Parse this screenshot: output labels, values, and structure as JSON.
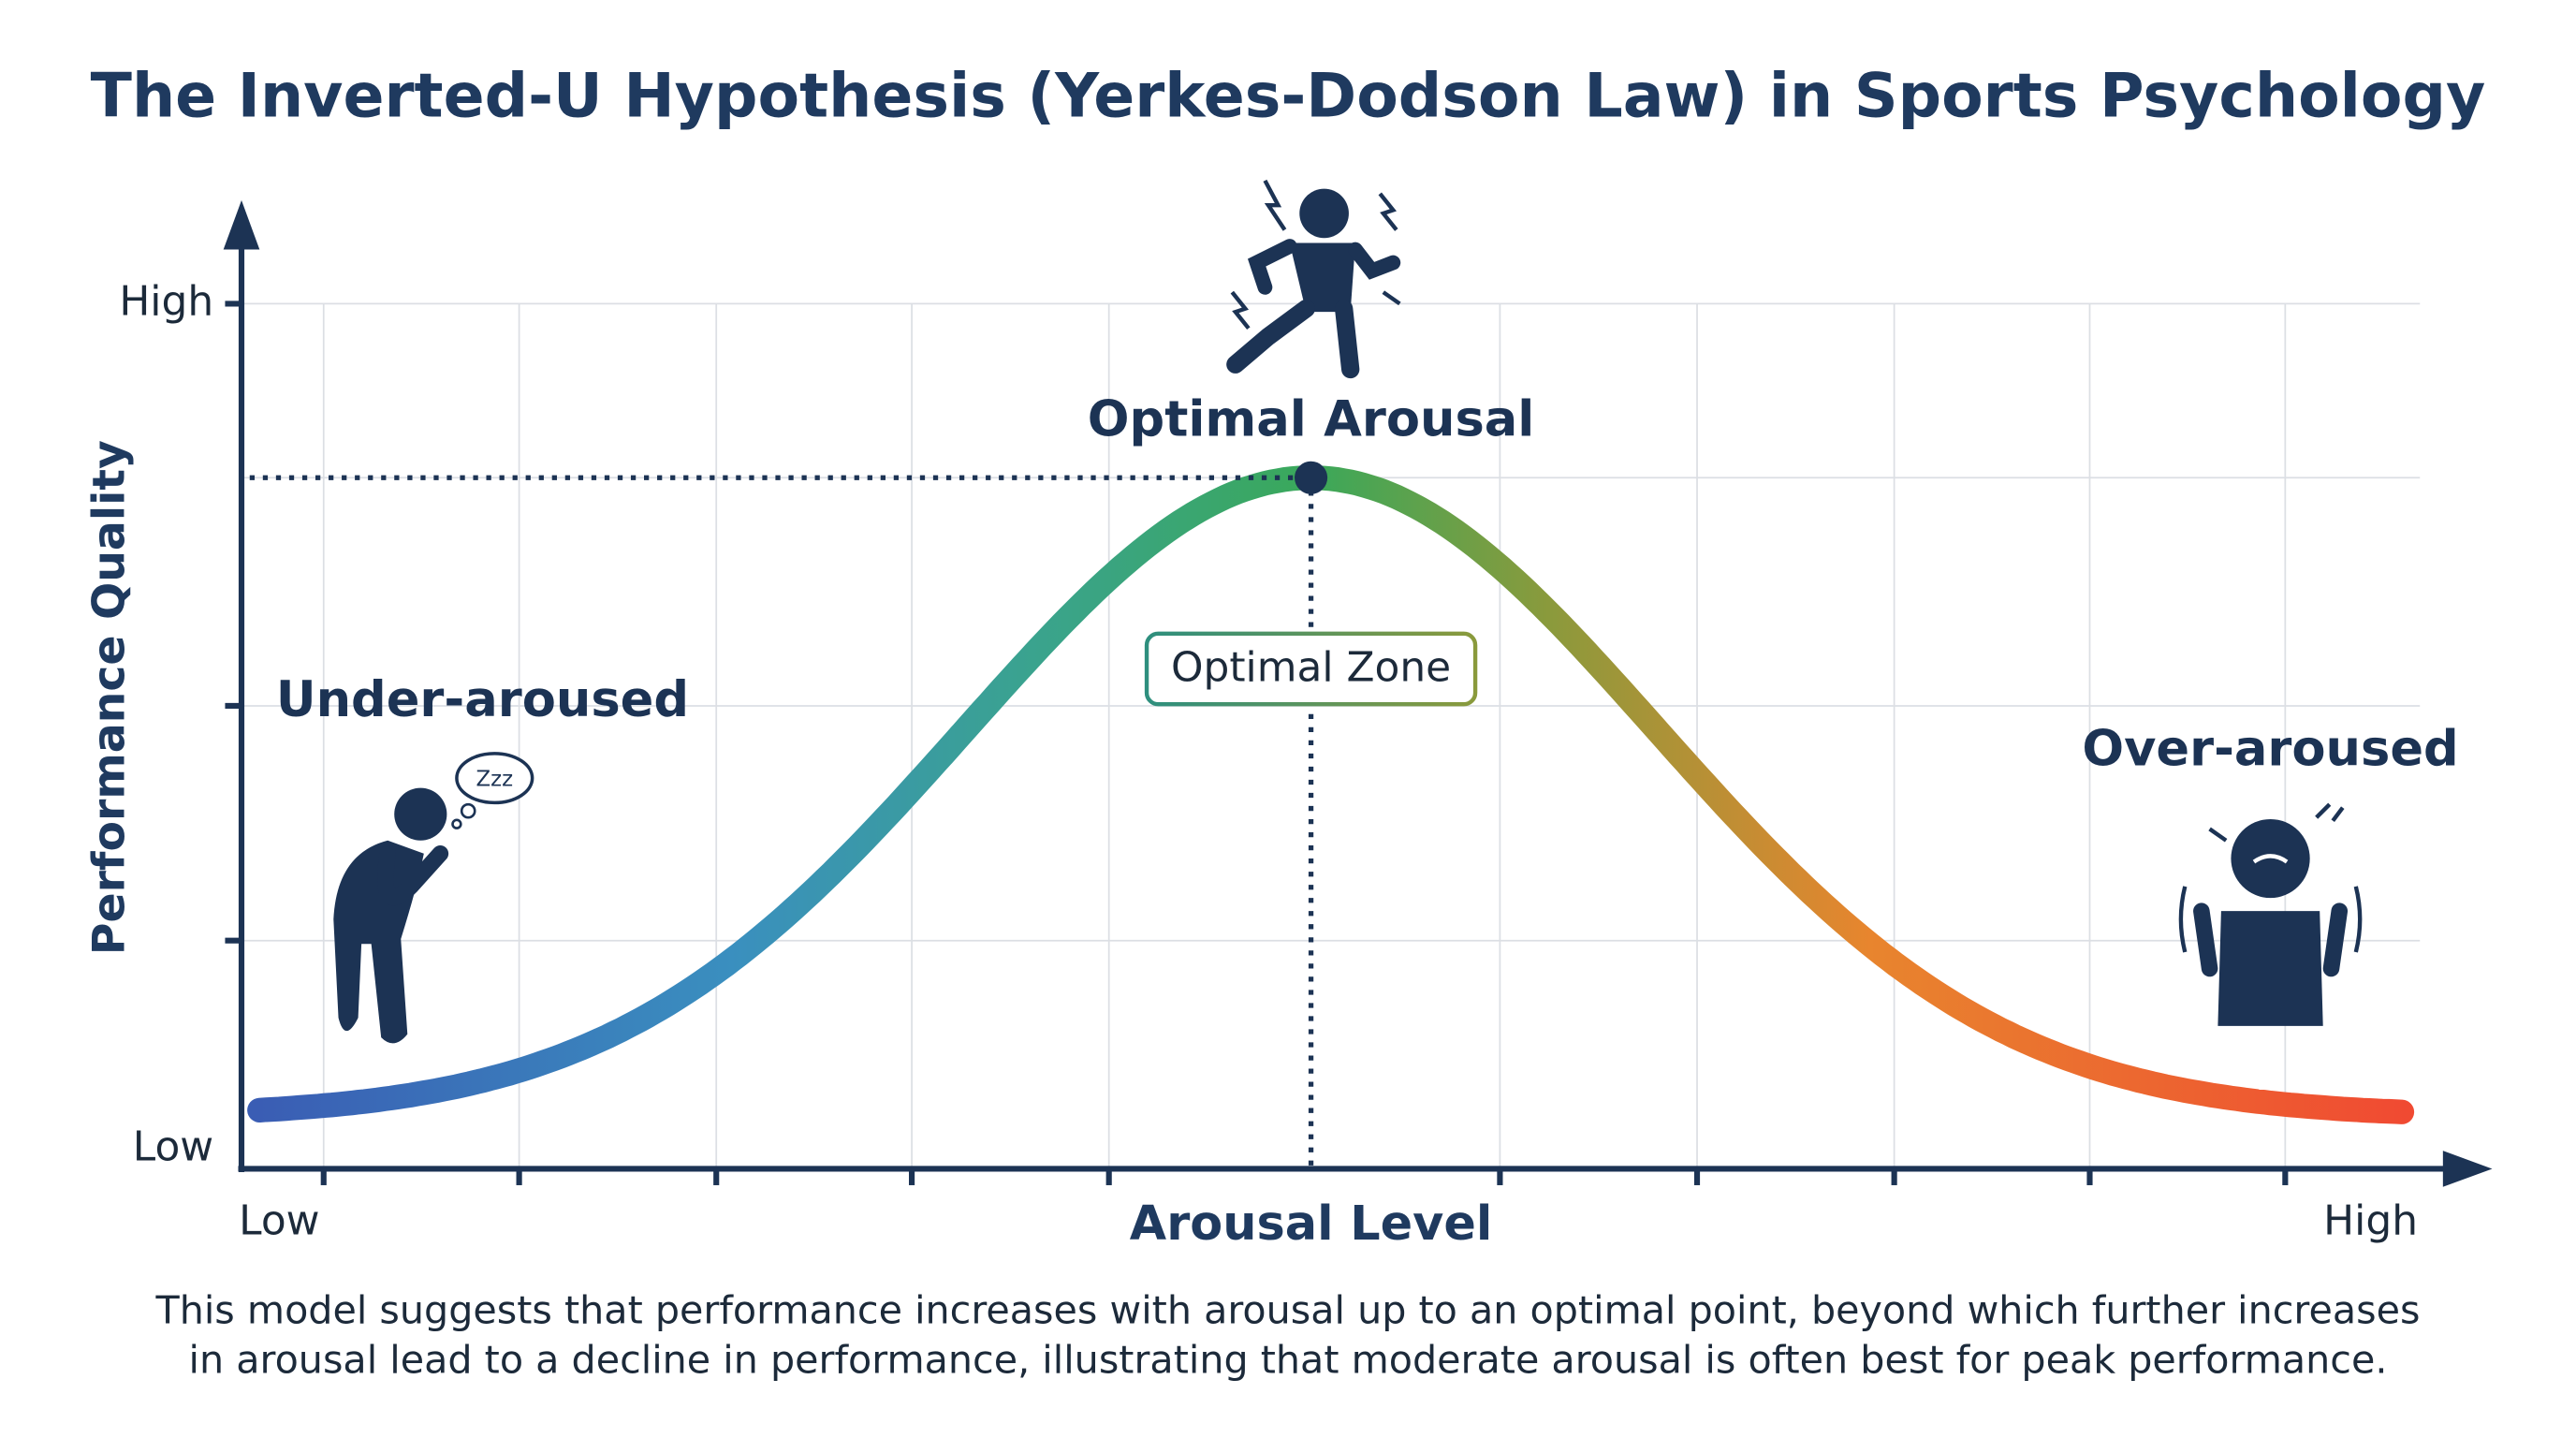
{
  "header": {
    "title": "The Inverted-U Hypothesis (Yerkes-Dodson Law) in Sports Psychology"
  },
  "y_axis": {
    "label": "Performance Quality",
    "ticks": [
      "High",
      "Low"
    ]
  },
  "x_axis": {
    "label": "Arousal Level",
    "ticks": [
      "Low",
      "High"
    ]
  },
  "annotations": {
    "peak": "Optimal Arousal",
    "zone": "Optimal Zone",
    "left": "Under-aroused",
    "right": "Over-aroused",
    "sleep": "Zzz"
  },
  "caption": [
    "This model suggests that performance increases with arousal up to an optimal point, beyond which further increases",
    "in arousal lead to a decline in performance, illustrating that moderate arousal is often best for peak performance."
  ]
}
